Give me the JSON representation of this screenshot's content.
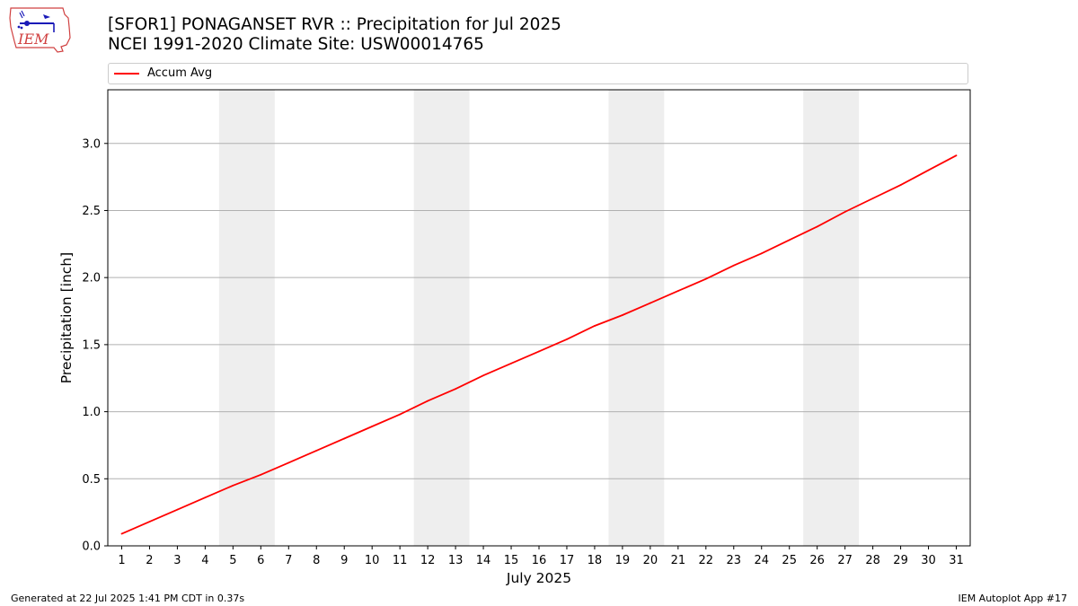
{
  "header": {
    "title_line1": "[SFOR1] PONAGANSET RVR :: Precipitation for Jul 2025",
    "title_line2": "NCEI 1991-2020 Climate Site: USW00014765",
    "logo_text": "IEM"
  },
  "legend": {
    "label": "Accum Avg",
    "color": "#ff0000"
  },
  "footer": {
    "generated": "Generated at 22 Jul 2025 1:41 PM CDT in 0.37s",
    "app": "IEM Autoplot App #17"
  },
  "chart_data": {
    "type": "line",
    "xlabel": "July 2025",
    "ylabel": "Precipitation [inch]",
    "xlim": [
      0.5,
      31.5
    ],
    "ylim": [
      0,
      3.4
    ],
    "x": [
      1,
      2,
      3,
      4,
      5,
      6,
      7,
      8,
      9,
      10,
      11,
      12,
      13,
      14,
      15,
      16,
      17,
      18,
      19,
      20,
      21,
      22,
      23,
      24,
      25,
      26,
      27,
      28,
      29,
      30,
      31
    ],
    "x_ticks": [
      "1",
      "2",
      "3",
      "4",
      "5",
      "6",
      "7",
      "8",
      "9",
      "10",
      "11",
      "12",
      "13",
      "14",
      "15",
      "16",
      "17",
      "18",
      "19",
      "20",
      "21",
      "22",
      "23",
      "24",
      "25",
      "26",
      "27",
      "28",
      "29",
      "30",
      "31"
    ],
    "y_ticks": [
      "0.0",
      "0.5",
      "1.0",
      "1.5",
      "2.0",
      "2.5",
      "3.0"
    ],
    "y_tick_values": [
      0,
      0.5,
      1.0,
      1.5,
      2.0,
      2.5,
      3.0
    ],
    "grid": "horizontal",
    "legend_placement": "top",
    "weekend_bands": [
      [
        5,
        6
      ],
      [
        12,
        13
      ],
      [
        19,
        20
      ],
      [
        26,
        27
      ]
    ],
    "band_color": "#eeeeee",
    "series": [
      {
        "name": "Accum Avg",
        "color": "#ff0000",
        "values": [
          0.09,
          0.18,
          0.27,
          0.36,
          0.45,
          0.53,
          0.62,
          0.71,
          0.8,
          0.89,
          0.98,
          1.08,
          1.17,
          1.27,
          1.36,
          1.45,
          1.54,
          1.64,
          1.72,
          1.81,
          1.9,
          1.99,
          2.09,
          2.18,
          2.28,
          2.38,
          2.49,
          2.59,
          2.69,
          2.8,
          2.91
        ]
      }
    ]
  }
}
